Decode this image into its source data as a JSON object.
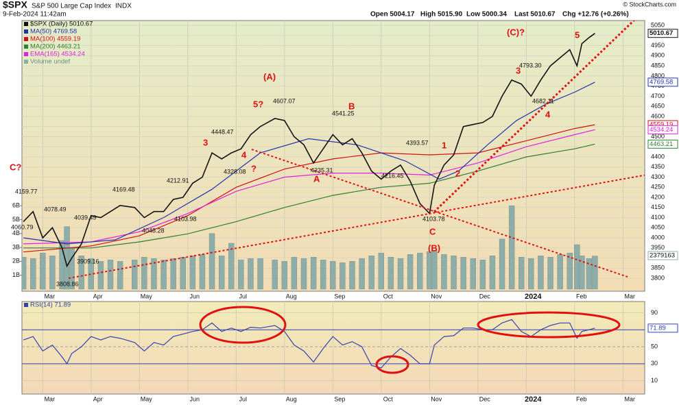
{
  "header": {
    "symbol": "$SPX",
    "name": "S&P 500 Large Cap Index",
    "exchange": "INDX",
    "timestamp": "9-Feb-2024 11:42am",
    "source": "© StockCharts.com",
    "quote": [
      "Open 5004.17",
      "High 5015.90",
      "Low 5000.34",
      "Last 5010.67",
      "Chg +12.76 (+0.26%)"
    ]
  },
  "chart_data": [
    {
      "type": "line",
      "x": [
        2.6,
        2.8,
        3.0,
        3.2,
        3.4,
        3.5,
        3.6,
        3.8,
        4.0,
        4.2,
        4.4,
        4.6,
        4.9,
        5.1,
        5.3,
        5.5,
        5.7,
        5.9,
        6.1,
        6.3,
        6.5,
        6.7,
        6.9,
        7.1,
        7.3,
        7.5,
        7.8,
        8.0,
        8.2,
        8.4,
        8.6,
        8.8,
        9.0,
        9.2,
        9.4,
        9.6,
        9.8,
        10.0,
        10.2,
        10.4,
        10.6,
        10.8,
        11.0,
        11.1,
        11.3,
        11.5,
        11.7,
        11.9,
        12.1,
        12.3,
        12.5,
        12.7,
        12.9,
        13.1,
        13.3,
        13.5,
        13.7,
        13.9,
        14.05,
        14.15,
        14.3,
        14.42
      ],
      "xlim": [
        2.57,
        15.45
      ],
      "xticks": [
        {
          "value": 3,
          "label": "Mar"
        },
        {
          "value": 4,
          "label": "Apr"
        },
        {
          "value": 5,
          "label": "May"
        },
        {
          "value": 6,
          "label": "Jun"
        },
        {
          "value": 7,
          "label": "Jul"
        },
        {
          "value": 8,
          "label": "Aug"
        },
        {
          "value": 9,
          "label": "Sep"
        },
        {
          "value": 10,
          "label": "Oct"
        },
        {
          "value": 11,
          "label": "Nov"
        },
        {
          "value": 12,
          "label": "Dec"
        },
        {
          "value": 13,
          "label": "2024"
        },
        {
          "value": 14,
          "label": "Feb"
        },
        {
          "value": 15,
          "label": "Mar"
        }
      ],
      "ylim": [
        3736,
        5074
      ],
      "yticks": [
        3800,
        3850,
        3900,
        3950,
        4000,
        4050,
        4100,
        4150,
        4200,
        4250,
        4300,
        4350,
        4400,
        4450,
        4500,
        4550,
        4600,
        4650,
        4700,
        4750,
        4800,
        4850,
        4900,
        4950,
        5000,
        5050
      ],
      "y2lim": [
        -0.15,
        19.3
      ],
      "y2ticks": [
        {
          "value": 1,
          "label": "1B"
        },
        {
          "value": 2,
          "label": "2B"
        },
        {
          "value": 3,
          "label": "3B"
        },
        {
          "value": 4,
          "label": "4B"
        },
        {
          "value": 5,
          "label": "5B"
        },
        {
          "value": 6,
          "label": "6B"
        }
      ],
      "grid": true,
      "series": [
        {
          "name": "Volume undef",
          "type": "bar",
          "axis": "y2",
          "color": "#8fada8",
          "values": [
            2.3,
            2.2,
            2.6,
            2.4,
            3.5,
            4.5,
            3.0,
            2.4,
            2.2,
            2.0,
            2.1,
            2.0,
            2.1,
            2.3,
            2.2,
            2.1,
            2.2,
            2.3,
            2.4,
            2.5,
            4.0,
            2.4,
            3.3,
            2.1,
            2.2,
            2.2,
            2.1,
            2.0,
            2.3,
            2.2,
            2.3,
            2.1,
            2.0,
            1.9,
            2.0,
            2.2,
            2.4,
            2.6,
            2.3,
            2.2,
            2.5,
            2.6,
            2.7,
            2.8,
            2.5,
            2.4,
            2.3,
            2.2,
            2.1,
            2.4,
            3.6,
            6.0,
            2.3,
            2.2,
            2.4,
            2.3,
            2.5,
            2.6,
            3.2,
            2.4,
            2.2,
            2.38
          ]
        },
        {
          "name": "MA(200) 4463.21",
          "color": "#2e7d32",
          "x": [
            2.6,
            4,
            5,
            6,
            7,
            8,
            9,
            10,
            11,
            12,
            13,
            14,
            14.42
          ],
          "values": [
            3950,
            3950,
            3980,
            4020,
            4080,
            4150,
            4210,
            4250,
            4270,
            4330,
            4400,
            4440,
            4463.21
          ]
        },
        {
          "name": "MA(100) 4559.19",
          "color": "#d01010",
          "x": [
            2.6,
            4,
            5,
            6,
            7,
            8,
            9,
            10,
            11,
            12,
            13,
            14,
            14.42
          ],
          "values": [
            3930,
            3960,
            4010,
            4110,
            4250,
            4340,
            4390,
            4420,
            4410,
            4420,
            4480,
            4540,
            4559.19
          ]
        },
        {
          "name": "EMA(165) 4534.24",
          "color": "#e020e0",
          "x": [
            2.6,
            4,
            5,
            6,
            7,
            8,
            9,
            10,
            11,
            12,
            13,
            14,
            14.42
          ],
          "values": [
            3970,
            3980,
            4030,
            4120,
            4230,
            4300,
            4320,
            4320,
            4310,
            4370,
            4450,
            4510,
            4534.24
          ]
        },
        {
          "name": "MA(50) 4769.58",
          "color": "#2233aa",
          "x": [
            2.6,
            3.5,
            4.5,
            5.5,
            6.5,
            7.5,
            8.5,
            9.5,
            10.5,
            11.2,
            11.6,
            12.2,
            12.8,
            13.4,
            14.0,
            14.42
          ],
          "values": [
            4000,
            3970,
            3990,
            4100,
            4240,
            4420,
            4490,
            4460,
            4380,
            4290,
            4330,
            4460,
            4580,
            4660,
            4720,
            4769.58
          ]
        },
        {
          "name": "$SPX (Daily) 5010.67",
          "color": "#111111",
          "values": [
            4080,
            4130,
            4000,
            4050,
            3950,
            3860,
            3900,
            3970,
            4110,
            4100,
            4130,
            4160,
            4150,
            4100,
            4130,
            4130,
            4190,
            4200,
            4270,
            4300,
            4420,
            4390,
            4420,
            4440,
            4510,
            4550,
            4590,
            4580,
            4500,
            4460,
            4370,
            4440,
            4510,
            4460,
            4490,
            4420,
            4330,
            4290,
            4330,
            4360,
            4280,
            4170,
            4120,
            4260,
            4360,
            4410,
            4550,
            4560,
            4570,
            4600,
            4700,
            4780,
            4760,
            4700,
            4780,
            4850,
            4890,
            4930,
            4850,
            4960,
            4990,
            5010.67
          ]
        }
      ],
      "volume_last_label": "2379163",
      "annotations": [
        "C?",
        "(A)",
        "5?",
        "3",
        "4",
        "?",
        "A",
        "B",
        "1",
        "2",
        "C",
        "(B)",
        "(C)?",
        "3",
        "4",
        "5",
        "4159.77",
        "4078.49",
        "4060.79",
        "4039.49",
        "3909.16",
        "3808.86",
        "4169.48",
        "4048.28",
        "4212.91",
        "4103.98",
        "4448.47",
        "4328.08",
        "4607.07",
        "4335.31",
        "4541.25",
        "4216.45",
        "4393.57",
        "4103.78",
        "4793.30",
        "4682.11"
      ]
    },
    {
      "type": "line",
      "x": [
        2.6,
        2.8,
        3.0,
        3.2,
        3.4,
        3.5,
        3.6,
        3.8,
        4.0,
        4.2,
        4.4,
        4.6,
        4.9,
        5.1,
        5.3,
        5.5,
        5.7,
        5.9,
        6.1,
        6.3,
        6.5,
        6.7,
        6.9,
        7.1,
        7.3,
        7.5,
        7.8,
        8.0,
        8.2,
        8.4,
        8.6,
        8.8,
        9.0,
        9.2,
        9.4,
        9.6,
        9.8,
        10.0,
        10.2,
        10.4,
        10.6,
        10.8,
        11.0,
        11.1,
        11.3,
        11.5,
        11.7,
        11.9,
        12.1,
        12.3,
        12.5,
        12.7,
        12.9,
        13.1,
        13.3,
        13.5,
        13.7,
        13.9,
        14.05,
        14.15,
        14.3,
        14.42
      ],
      "xlim": [
        2.57,
        15.45
      ],
      "xticks": [
        {
          "value": 3,
          "label": "Mar"
        },
        {
          "value": 4,
          "label": "Apr"
        },
        {
          "value": 5,
          "label": "May"
        },
        {
          "value": 6,
          "label": "Jun"
        },
        {
          "value": 7,
          "label": "Jul"
        },
        {
          "value": 8,
          "label": "Aug"
        },
        {
          "value": 9,
          "label": "Sep"
        },
        {
          "value": 10,
          "label": "Oct"
        },
        {
          "value": 11,
          "label": "Nov"
        },
        {
          "value": 12,
          "label": "Dec"
        },
        {
          "value": 13,
          "label": "2024"
        },
        {
          "value": 14,
          "label": "Feb"
        },
        {
          "value": 15,
          "label": "Mar"
        }
      ],
      "ylim": [
        -5.6,
        103.2
      ],
      "yticks": [
        10,
        30,
        50,
        70,
        90
      ],
      "grid": true,
      "series": [
        {
          "name": "RSI(14) 71.89",
          "color": "#3340b0",
          "values": [
            58,
            62,
            45,
            52,
            38,
            30,
            42,
            50,
            62,
            58,
            62,
            60,
            55,
            45,
            55,
            52,
            62,
            65,
            68,
            70,
            78,
            68,
            72,
            68,
            73,
            72,
            75,
            68,
            52,
            45,
            32,
            48,
            62,
            52,
            56,
            50,
            28,
            25,
            38,
            48,
            40,
            30,
            30,
            52,
            62,
            63,
            72,
            72,
            70,
            70,
            78,
            82,
            68,
            62,
            70,
            75,
            78,
            78,
            60,
            68,
            70,
            71.89
          ]
        }
      ]
    }
  ]
}
